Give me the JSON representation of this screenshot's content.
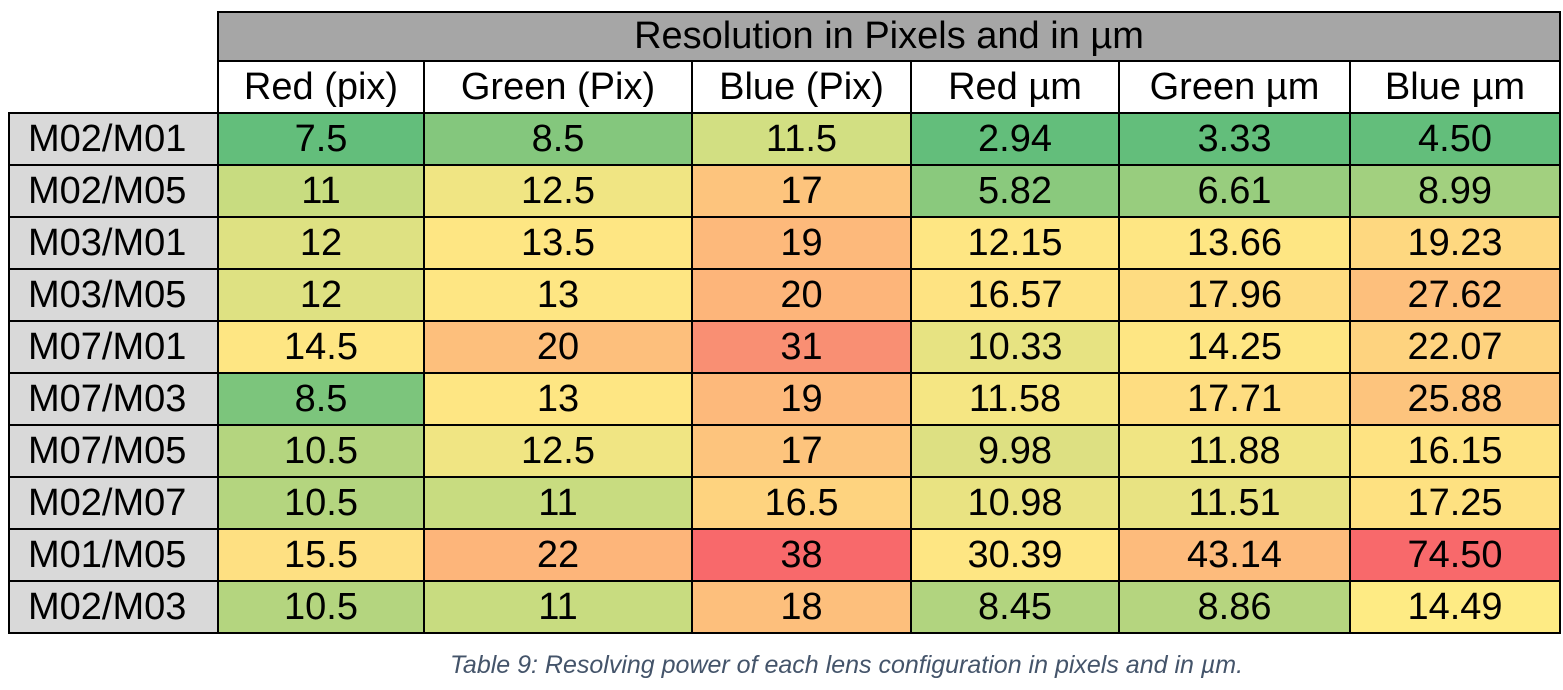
{
  "table": {
    "title": "Resolution in Pixels and in µm",
    "columns": [
      "Red (pix)",
      "Green (Pix)",
      "Blue (Pix)",
      "Red µm",
      "Green µm",
      "Blue µm"
    ],
    "rows": [
      {
        "label": "M02/M01",
        "values": [
          "7.5",
          "8.5",
          "11.5",
          "2.94",
          "3.33",
          "4.50"
        ],
        "colors": [
          "#63be7b",
          "#84c77d",
          "#d2df82",
          "#63be7b",
          "#63be7b",
          "#63be7b"
        ]
      },
      {
        "label": "M02/M05",
        "values": [
          "11",
          "12.5",
          "17",
          "5.82",
          "6.61",
          "8.99"
        ],
        "colors": [
          "#c8dc80",
          "#f0e583",
          "#fdc47d",
          "#8ac97d",
          "#98cd7e",
          "#a2d07f"
        ]
      },
      {
        "label": "M03/M01",
        "values": [
          "12",
          "13.5",
          "19",
          "12.15",
          "13.66",
          "19.23"
        ],
        "colors": [
          "#dee182",
          "#fee683",
          "#fdb97b",
          "#fee683",
          "#fee683",
          "#fed880"
        ]
      },
      {
        "label": "M03/M05",
        "values": [
          "12",
          "13",
          "20",
          "16.57",
          "17.96",
          "27.62"
        ],
        "colors": [
          "#dee182",
          "#fee683",
          "#fdb57a",
          "#fee382",
          "#fedc81",
          "#fdbf7c"
        ]
      },
      {
        "label": "M07/M01",
        "values": [
          "14.5",
          "20",
          "31",
          "10.33",
          "14.25",
          "22.07"
        ],
        "colors": [
          "#fee683",
          "#fdbf7c",
          "#f98f73",
          "#e7e382",
          "#fee683",
          "#fed37f"
        ]
      },
      {
        "label": "M07/M03",
        "values": [
          "8.5",
          "13",
          "19",
          "11.58",
          "17.71",
          "25.88"
        ],
        "colors": [
          "#7cc57c",
          "#fee683",
          "#fdb97b",
          "#f5e683",
          "#fedd81",
          "#fdc47d"
        ]
      },
      {
        "label": "M07/M05",
        "values": [
          "10.5",
          "12.5",
          "17",
          "9.98",
          "11.88",
          "16.15"
        ],
        "colors": [
          "#b4d57f",
          "#f0e583",
          "#fdc47d",
          "#ddE082",
          "#f0e583",
          "#fee382"
        ]
      },
      {
        "label": "M02/M07",
        "values": [
          "10.5",
          "11",
          "16.5",
          "10.98",
          "11.51",
          "17.25"
        ],
        "colors": [
          "#b4d57f",
          "#c8dc80",
          "#fed37f",
          "#e9e382",
          "#e8e382",
          "#fee181"
        ]
      },
      {
        "label": "M01/M05",
        "values": [
          "15.5",
          "22",
          "38",
          "30.39",
          "43.14",
          "74.50"
        ],
        "colors": [
          "#fee082",
          "#fdb57a",
          "#f8696b",
          "#fee683",
          "#fdbb7c",
          "#f8696b"
        ]
      },
      {
        "label": "M02/M03",
        "values": [
          "10.5",
          "11",
          "18",
          "8.45",
          "8.86",
          "14.49"
        ],
        "colors": [
          "#b4d57f",
          "#c8dc80",
          "#fdbf7c",
          "#b1d47f",
          "#b5d57f",
          "#feeb84"
        ]
      }
    ]
  },
  "caption": "Table 9: Resolving power of each lens configuration in pixels and in µm."
}
